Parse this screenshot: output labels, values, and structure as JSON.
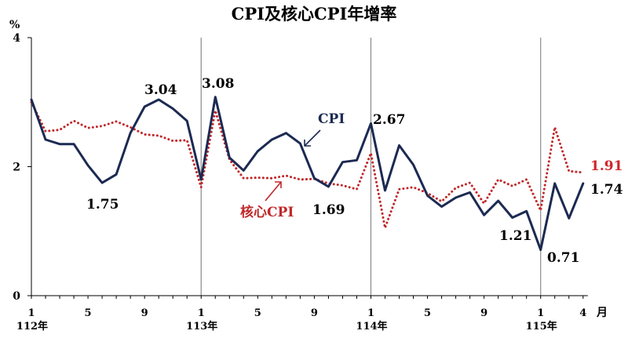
{
  "chart_data": {
    "type": "line",
    "title": "CPI及核心CPI年增率",
    "yunit": "%",
    "xunit": "月",
    "ylim": [
      0,
      4
    ],
    "yticks": [
      0,
      2,
      4
    ],
    "xticks": [
      {
        "index": 0,
        "label": "1",
        "year": "112年"
      },
      {
        "index": 4,
        "label": "5"
      },
      {
        "index": 8,
        "label": "9"
      },
      {
        "index": 12,
        "label": "1",
        "year": "113年"
      },
      {
        "index": 16,
        "label": "5"
      },
      {
        "index": 20,
        "label": "9"
      },
      {
        "index": 24,
        "label": "1",
        "year": "114年"
      },
      {
        "index": 28,
        "label": "5"
      },
      {
        "index": 32,
        "label": "9"
      },
      {
        "index": 36,
        "label": "1",
        "year": "115年"
      },
      {
        "index": 39,
        "label": "4"
      }
    ],
    "year_separators": [
      12,
      24,
      36
    ],
    "series": [
      {
        "name": "CPI",
        "color": "#1c2a52",
        "style": "solid",
        "values": [
          3.04,
          2.42,
          2.35,
          2.35,
          2.02,
          1.75,
          1.88,
          2.52,
          2.93,
          3.04,
          2.9,
          2.71,
          1.8,
          3.08,
          2.14,
          1.94,
          2.24,
          2.42,
          2.52,
          2.36,
          1.82,
          1.69,
          2.07,
          2.1,
          2.67,
          1.63,
          2.33,
          2.03,
          1.55,
          1.38,
          1.52,
          1.6,
          1.25,
          1.47,
          1.21,
          1.31,
          0.71,
          1.74,
          1.2,
          1.74
        ]
      },
      {
        "name": "核心CPI",
        "color": "#c0282a",
        "style": "dotted",
        "values": [
          3.0,
          2.55,
          2.57,
          2.71,
          2.6,
          2.63,
          2.7,
          2.61,
          2.5,
          2.48,
          2.4,
          2.41,
          1.68,
          2.87,
          2.11,
          1.82,
          1.83,
          1.82,
          1.86,
          1.8,
          1.81,
          1.74,
          1.71,
          1.65,
          2.21,
          1.05,
          1.65,
          1.68,
          1.59,
          1.46,
          1.67,
          1.75,
          1.43,
          1.8,
          1.7,
          1.8,
          1.32,
          2.61,
          1.93,
          1.91
        ]
      }
    ],
    "annotations": [
      {
        "text": "3.04",
        "series": 0,
        "index": 9
      },
      {
        "text": "1.75",
        "series": 0,
        "index": 5
      },
      {
        "text": "3.08",
        "series": 0,
        "index": 13
      },
      {
        "text": "1.69",
        "series": 0,
        "index": 21
      },
      {
        "text": "2.67",
        "series": 0,
        "index": 24
      },
      {
        "text": "1.21",
        "series": 0,
        "index": 34
      },
      {
        "text": "0.71",
        "series": 0,
        "index": 36
      },
      {
        "text": "1.74",
        "series": 0,
        "index": 39
      },
      {
        "text": "1.91",
        "series": 1,
        "index": 39
      }
    ]
  }
}
